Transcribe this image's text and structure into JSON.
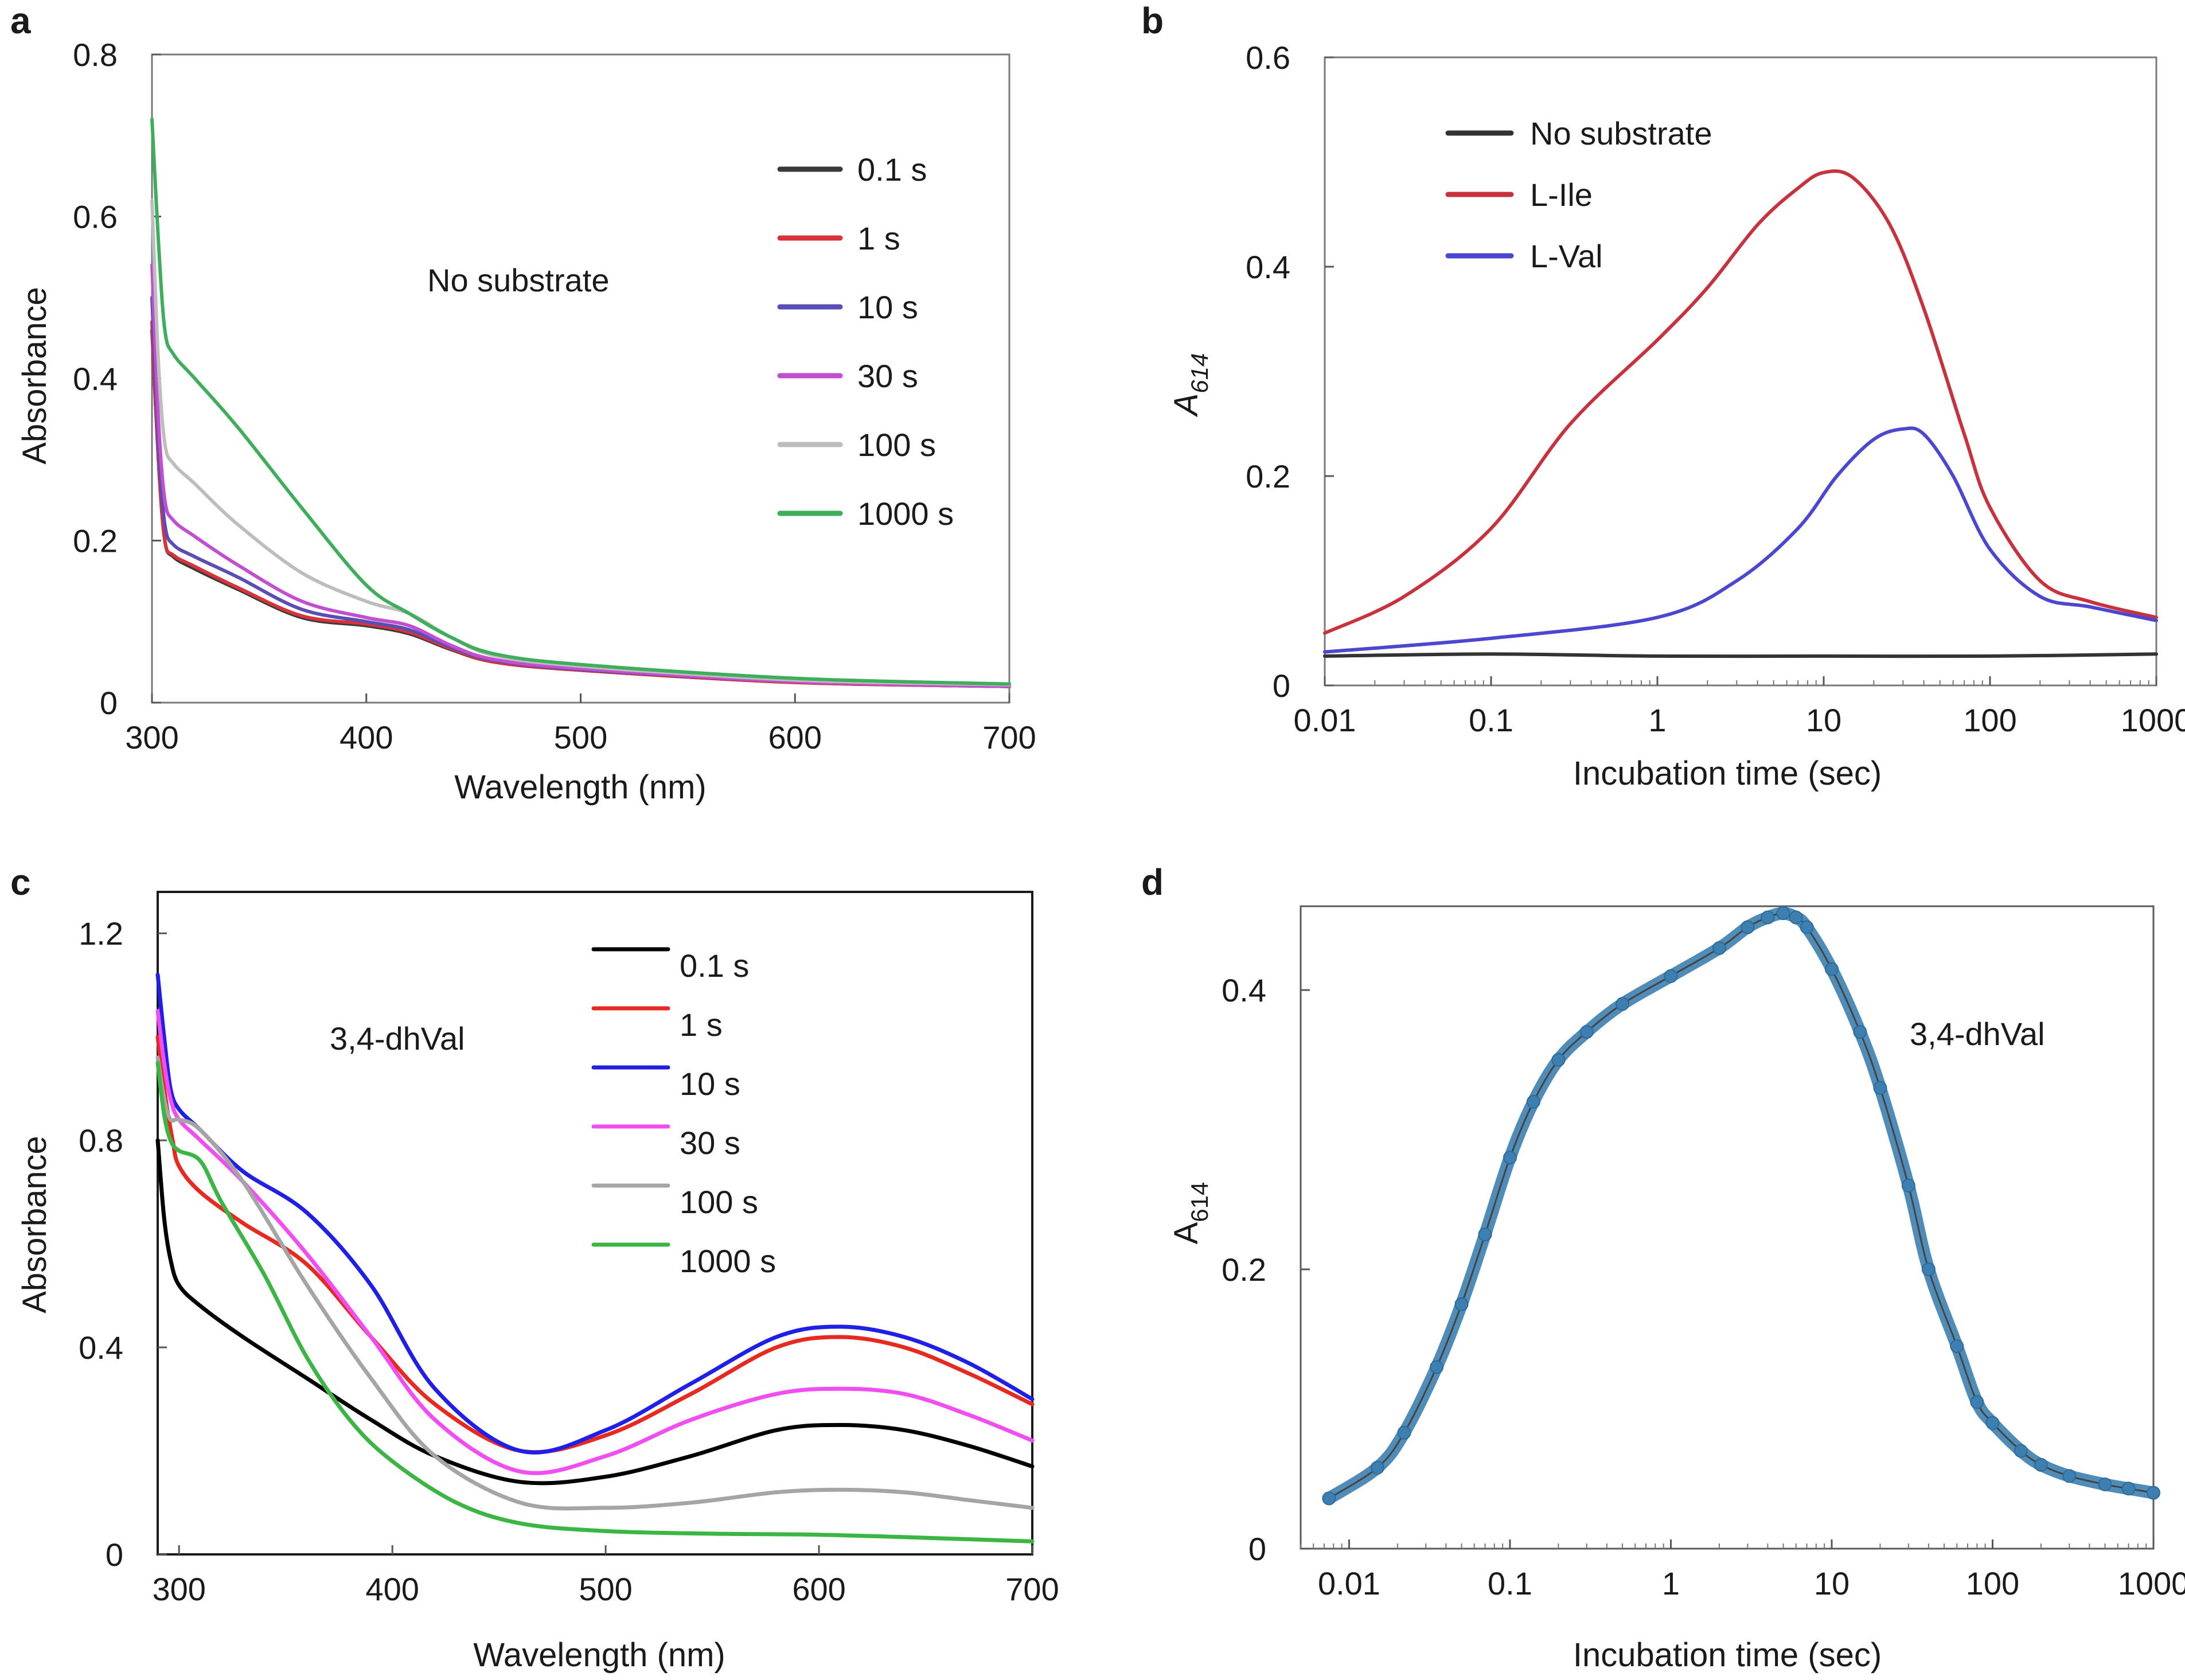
{
  "chart_data": [
    {
      "panel": "a",
      "type": "line",
      "xlabel": "Wavelength (nm)",
      "ylabel": "Absorbance",
      "annotation": "No substrate",
      "xlim": [
        300,
        700
      ],
      "ylim": [
        0,
        0.8
      ],
      "xticks": [
        "300",
        "400",
        "500",
        "600",
        "700"
      ],
      "yticks": [
        "0",
        "0.2",
        "0.4",
        "0.6",
        "0.8"
      ],
      "legend_position": "top-right",
      "series": [
        {
          "name": "0.1 s",
          "color": "#3a3a3a",
          "x": [
            300,
            303,
            306,
            310,
            320,
            340,
            370,
            400,
            420,
            440,
            460,
            500,
            600,
            700
          ],
          "y": [
            0.46,
            0.3,
            0.2,
            0.18,
            0.165,
            0.14,
            0.105,
            0.095,
            0.085,
            0.065,
            0.05,
            0.04,
            0.025,
            0.02
          ]
        },
        {
          "name": "1 s",
          "color": "#d9333a",
          "x": [
            300,
            303,
            306,
            310,
            320,
            340,
            370,
            400,
            420,
            440,
            460,
            500,
            600,
            700
          ],
          "y": [
            0.47,
            0.3,
            0.2,
            0.182,
            0.168,
            0.142,
            0.107,
            0.097,
            0.087,
            0.066,
            0.05,
            0.04,
            0.025,
            0.02
          ]
        },
        {
          "name": "10 s",
          "color": "#5a4db5",
          "x": [
            300,
            303,
            306,
            310,
            320,
            340,
            370,
            400,
            420,
            440,
            460,
            500,
            600,
            700
          ],
          "y": [
            0.5,
            0.32,
            0.22,
            0.195,
            0.18,
            0.155,
            0.115,
            0.1,
            0.09,
            0.068,
            0.052,
            0.041,
            0.026,
            0.02
          ]
        },
        {
          "name": "30 s",
          "color": "#c24fcf",
          "x": [
            300,
            303,
            306,
            310,
            320,
            340,
            370,
            400,
            420,
            440,
            460,
            500,
            600,
            700
          ],
          "y": [
            0.54,
            0.35,
            0.25,
            0.225,
            0.205,
            0.17,
            0.125,
            0.105,
            0.095,
            0.07,
            0.053,
            0.042,
            0.026,
            0.02
          ]
        },
        {
          "name": "100 s",
          "color": "#bdbdbd",
          "x": [
            300,
            303,
            306,
            310,
            320,
            340,
            370,
            400,
            420,
            440,
            460,
            500,
            600,
            700
          ],
          "y": [
            0.62,
            0.42,
            0.32,
            0.295,
            0.27,
            0.22,
            0.16,
            0.125,
            0.11,
            0.08,
            0.058,
            0.045,
            0.028,
            0.022
          ]
        },
        {
          "name": "1000 s",
          "color": "#3fae5c",
          "x": [
            300,
            303,
            306,
            310,
            320,
            340,
            370,
            400,
            420,
            440,
            460,
            500,
            600,
            700
          ],
          "y": [
            0.72,
            0.57,
            0.46,
            0.43,
            0.4,
            0.34,
            0.24,
            0.145,
            0.11,
            0.08,
            0.06,
            0.047,
            0.03,
            0.023
          ]
        }
      ]
    },
    {
      "panel": "b",
      "type": "line",
      "xscale": "log",
      "xlabel": "Incubation time (sec)",
      "ylabel_main": "A",
      "ylabel_sub": "614",
      "xlim": [
        0.01,
        1000
      ],
      "ylim": [
        0,
        0.6
      ],
      "xticks": [
        "0.01",
        "0.1",
        "1",
        "10",
        "100",
        "1000"
      ],
      "yticks": [
        "0",
        "0.2",
        "0.4",
        "0.6"
      ],
      "legend_position": "top-left",
      "series": [
        {
          "name": "No substrate",
          "color": "#333333",
          "x": [
            0.01,
            0.1,
            1,
            10,
            100,
            1000
          ],
          "y": [
            0.028,
            0.03,
            0.028,
            0.028,
            0.028,
            0.03
          ]
        },
        {
          "name": "L-Ile",
          "color": "#c8323d",
          "x": [
            0.01,
            0.03,
            0.1,
            0.3,
            1,
            2,
            4,
            7,
            10,
            15,
            25,
            40,
            70,
            100,
            200,
            400,
            1000
          ],
          "y": [
            0.05,
            0.085,
            0.15,
            0.25,
            0.33,
            0.38,
            0.44,
            0.475,
            0.49,
            0.485,
            0.44,
            0.36,
            0.24,
            0.17,
            0.1,
            0.08,
            0.065
          ]
        },
        {
          "name": "L-Val",
          "color": "#4b47d0",
          "x": [
            0.01,
            0.1,
            1,
            3,
            7,
            12,
            20,
            30,
            40,
            60,
            100,
            200,
            400,
            1000
          ],
          "y": [
            0.032,
            0.045,
            0.065,
            0.1,
            0.15,
            0.2,
            0.235,
            0.245,
            0.24,
            0.2,
            0.13,
            0.085,
            0.075,
            0.062
          ]
        }
      ]
    },
    {
      "panel": "c",
      "type": "line",
      "xlabel": "Wavelength (nm)",
      "ylabel": "Absorbance",
      "annotation": "3,4-dhVal",
      "xlim": [
        290,
        700
      ],
      "ylim": [
        0,
        1.28
      ],
      "xticks": [
        "300",
        "400",
        "500",
        "600",
        "700"
      ],
      "yticks": [
        "0",
        "0.4",
        "0.8",
        "1.2"
      ],
      "legend_position": "top-center",
      "series": [
        {
          "name": "0.1 s",
          "color": "#000000",
          "x": [
            290,
            293,
            296,
            300,
            310,
            330,
            360,
            390,
            420,
            460,
            500,
            540,
            580,
            610,
            640,
            670,
            700
          ],
          "y": [
            0.8,
            0.65,
            0.57,
            0.52,
            0.48,
            0.42,
            0.34,
            0.26,
            0.19,
            0.14,
            0.15,
            0.19,
            0.24,
            0.25,
            0.24,
            0.21,
            0.17
          ]
        },
        {
          "name": "1 s",
          "color": "#e8291f",
          "x": [
            290,
            293,
            297,
            300,
            310,
            330,
            360,
            390,
            420,
            460,
            500,
            540,
            580,
            610,
            640,
            670,
            700
          ],
          "y": [
            1.0,
            0.9,
            0.8,
            0.75,
            0.7,
            0.64,
            0.56,
            0.42,
            0.29,
            0.2,
            0.23,
            0.31,
            0.4,
            0.42,
            0.4,
            0.35,
            0.29
          ]
        },
        {
          "name": "10 s",
          "color": "#1f1fe5",
          "x": [
            290,
            293,
            296,
            300,
            310,
            330,
            360,
            390,
            420,
            460,
            500,
            540,
            580,
            610,
            640,
            670,
            700
          ],
          "y": [
            1.12,
            1.0,
            0.9,
            0.86,
            0.82,
            0.74,
            0.66,
            0.52,
            0.32,
            0.2,
            0.24,
            0.33,
            0.42,
            0.44,
            0.42,
            0.37,
            0.3
          ]
        },
        {
          "name": "30 s",
          "color": "#f04ef0",
          "x": [
            290,
            293,
            296,
            300,
            310,
            330,
            360,
            390,
            420,
            460,
            500,
            540,
            580,
            610,
            640,
            670,
            700
          ],
          "y": [
            1.05,
            0.95,
            0.88,
            0.84,
            0.8,
            0.72,
            0.58,
            0.42,
            0.26,
            0.16,
            0.19,
            0.26,
            0.31,
            0.32,
            0.31,
            0.27,
            0.22
          ]
        },
        {
          "name": "100 s",
          "color": "#a5a5a5",
          "x": [
            290,
            293,
            296,
            300,
            310,
            330,
            360,
            390,
            420,
            460,
            500,
            540,
            580,
            610,
            640,
            670,
            700
          ],
          "y": [
            0.96,
            0.88,
            0.84,
            0.84,
            0.82,
            0.72,
            0.52,
            0.34,
            0.19,
            0.1,
            0.09,
            0.1,
            0.12,
            0.125,
            0.12,
            0.105,
            0.09
          ]
        },
        {
          "name": "1000 s",
          "color": "#3bb543",
          "x": [
            290,
            293,
            296,
            300,
            310,
            320,
            340,
            360,
            380,
            400,
            430,
            460,
            500,
            550,
            600,
            650,
            700
          ],
          "y": [
            0.95,
            0.85,
            0.8,
            0.78,
            0.76,
            0.68,
            0.54,
            0.38,
            0.26,
            0.18,
            0.1,
            0.06,
            0.045,
            0.04,
            0.038,
            0.032,
            0.025
          ]
        }
      ]
    },
    {
      "panel": "d",
      "type": "scatter",
      "xscale": "log",
      "xlabel": "Incubation time (sec)",
      "ylabel_main": "A",
      "ylabel_sub": "614",
      "annotation": "3,4-dhVal",
      "xlim": [
        0.005,
        1000
      ],
      "ylim": [
        0,
        0.46
      ],
      "xticks": [
        "0.01",
        "0.1",
        "1",
        "10",
        "100",
        "1000"
      ],
      "yticks": [
        "0",
        "0.2",
        "0.4"
      ],
      "point_color": "#3d7fb0",
      "fit_line_color": "#444444",
      "x": [
        0.0075,
        0.015,
        0.022,
        0.035,
        0.05,
        0.07,
        0.1,
        0.14,
        0.2,
        0.3,
        0.5,
        1,
        2,
        3,
        4,
        5,
        6,
        7,
        10,
        15,
        20,
        30,
        40,
        60,
        80,
        100,
        150,
        200,
        300,
        500,
        700,
        1000
      ],
      "y": [
        0.036,
        0.058,
        0.083,
        0.13,
        0.175,
        0.225,
        0.28,
        0.32,
        0.35,
        0.37,
        0.39,
        0.41,
        0.43,
        0.445,
        0.452,
        0.455,
        0.452,
        0.445,
        0.415,
        0.37,
        0.33,
        0.26,
        0.2,
        0.145,
        0.105,
        0.09,
        0.07,
        0.06,
        0.052,
        0.046,
        0.043,
        0.04
      ]
    }
  ],
  "panels": {
    "a": {
      "label": "a",
      "xlabel": "Wavelength (nm)",
      "ylabel": "Absorbance",
      "annotation": "No substrate"
    },
    "b": {
      "label": "b",
      "xlabel": "Incubation time (sec)",
      "ylabel_main": "A",
      "ylabel_sub": "614"
    },
    "c": {
      "label": "c",
      "xlabel": "Wavelength (nm)",
      "ylabel": "Absorbance",
      "annotation": "3,4-dhVal"
    },
    "d": {
      "label": "d",
      "xlabel": "Incubation time (sec)",
      "ylabel_main": "A",
      "ylabel_sub": "614",
      "annotation": "3,4-dhVal"
    }
  }
}
